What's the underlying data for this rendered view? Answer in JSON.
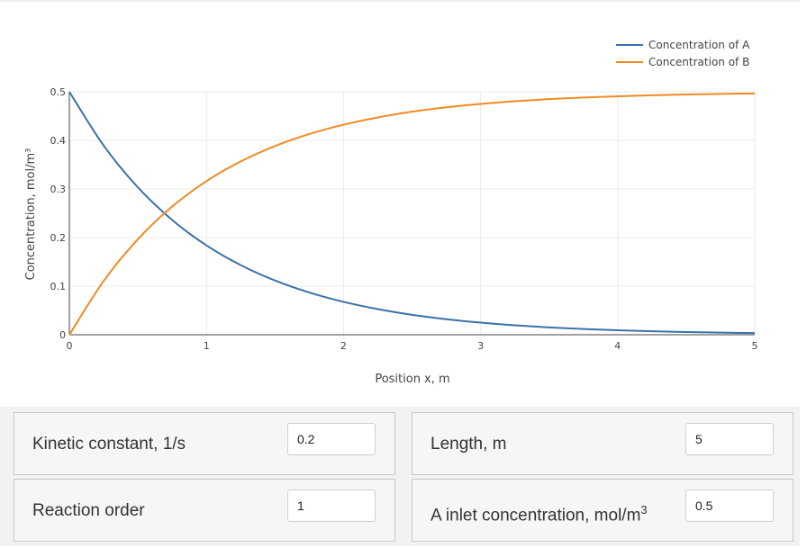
{
  "chart_data": {
    "type": "line",
    "xlabel": "Position x, m",
    "ylabel": "Concentration, mol/m³",
    "xlim": [
      0,
      5
    ],
    "ylim": [
      0,
      0.5
    ],
    "xticks": [
      "0",
      "1",
      "2",
      "3",
      "4",
      "5"
    ],
    "yticks": [
      "0",
      "0.1",
      "0.2",
      "0.3",
      "0.4",
      "0.5"
    ],
    "grid": true,
    "legend_position": "top-right",
    "x": [
      0,
      0.25,
      0.5,
      0.75,
      1,
      1.25,
      1.5,
      1.75,
      2,
      2.25,
      2.5,
      2.75,
      3,
      3.25,
      3.5,
      3.75,
      4,
      4.25,
      4.5,
      4.75,
      5
    ],
    "series": [
      {
        "name": "Concentration of A",
        "color": "#3b72a8",
        "values": [
          0.5,
          0.3894,
          0.3033,
          0.2362,
          0.1839,
          0.1433,
          0.1116,
          0.0869,
          0.0677,
          0.0527,
          0.041,
          0.032,
          0.0249,
          0.0194,
          0.0151,
          0.0118,
          0.0092,
          0.0071,
          0.0056,
          0.0043,
          0.0034
        ]
      },
      {
        "name": "Concentration of B",
        "color": "#f08a24",
        "values": [
          0,
          0.1106,
          0.1967,
          0.2638,
          0.3161,
          0.3567,
          0.3884,
          0.4131,
          0.4323,
          0.4473,
          0.459,
          0.468,
          0.4751,
          0.4806,
          0.4849,
          0.4882,
          0.4908,
          0.4929,
          0.4944,
          0.4957,
          0.4966
        ]
      }
    ]
  },
  "controls": {
    "kinetic_constant": {
      "label": "Kinetic constant, 1/s",
      "value": "0.2"
    },
    "length": {
      "label": "Length, m",
      "value": "5"
    },
    "reaction_order": {
      "label": "Reaction order",
      "value": "1"
    },
    "inlet_concentration": {
      "label_main": "A inlet concentration, mol/m",
      "label_sup": "3",
      "value": "0.5"
    }
  }
}
